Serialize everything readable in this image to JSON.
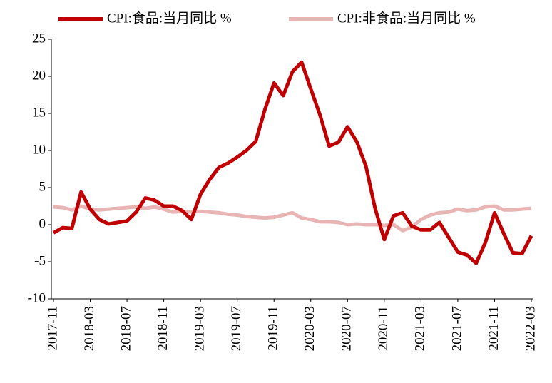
{
  "chart_data": {
    "type": "line",
    "categories": [
      "2017-11",
      null,
      null,
      null,
      "2018-03",
      null,
      null,
      null,
      "2018-07",
      null,
      null,
      null,
      "2018-11",
      null,
      null,
      null,
      "2019-03",
      null,
      null,
      null,
      "2019-07",
      null,
      null,
      null,
      "2019-11",
      null,
      null,
      null,
      "2020-03",
      null,
      null,
      null,
      "2020-07",
      null,
      null,
      null,
      "2020-11",
      null,
      null,
      null,
      "2021-03",
      null,
      null,
      null,
      "2021-07",
      null,
      null,
      null,
      "2021-11",
      null,
      null,
      null,
      "2022-03"
    ],
    "series": [
      {
        "name": "CPI:食品:当月同比 %",
        "color": "#c00000",
        "values": [
          -1.1,
          -0.4,
          -0.5,
          4.4,
          2.1,
          0.7,
          0.1,
          0.3,
          0.5,
          1.7,
          3.6,
          3.3,
          2.5,
          2.5,
          1.9,
          0.7,
          4.1,
          6.1,
          7.7,
          8.3,
          9.1,
          10.0,
          11.2,
          15.5,
          19.1,
          17.4,
          20.6,
          21.9,
          18.3,
          14.8,
          10.6,
          11.1,
          13.2,
          11.2,
          7.9,
          2.2,
          -2.0,
          1.2,
          1.6,
          -0.2,
          -0.7,
          -0.7,
          0.3,
          -1.7,
          -3.7,
          -4.1,
          -5.2,
          -2.4,
          1.6,
          -1.2,
          -3.8,
          -3.9,
          -1.5
        ]
      },
      {
        "name": "CPI:非食品:当月同比 %",
        "color": "#e8b4b4",
        "values": [
          2.4,
          2.3,
          2.0,
          2.5,
          2.1,
          2.0,
          2.1,
          2.2,
          2.3,
          2.4,
          2.2,
          2.4,
          2.1,
          1.7,
          1.8,
          1.7,
          1.8,
          1.7,
          1.6,
          1.4,
          1.3,
          1.1,
          1.0,
          0.9,
          1.0,
          1.3,
          1.6,
          0.9,
          0.7,
          0.4,
          0.4,
          0.3,
          0.0,
          0.1,
          0.0,
          0.0,
          -0.1,
          0.0,
          -0.8,
          -0.3,
          0.7,
          1.3,
          1.6,
          1.7,
          2.1,
          1.9,
          2.0,
          2.4,
          2.5,
          2.0,
          2.0,
          2.1,
          2.2
        ]
      }
    ],
    "ylim": [
      -10,
      25
    ],
    "yticks": [
      -10,
      -5,
      0,
      5,
      10,
      15,
      20,
      25
    ]
  }
}
